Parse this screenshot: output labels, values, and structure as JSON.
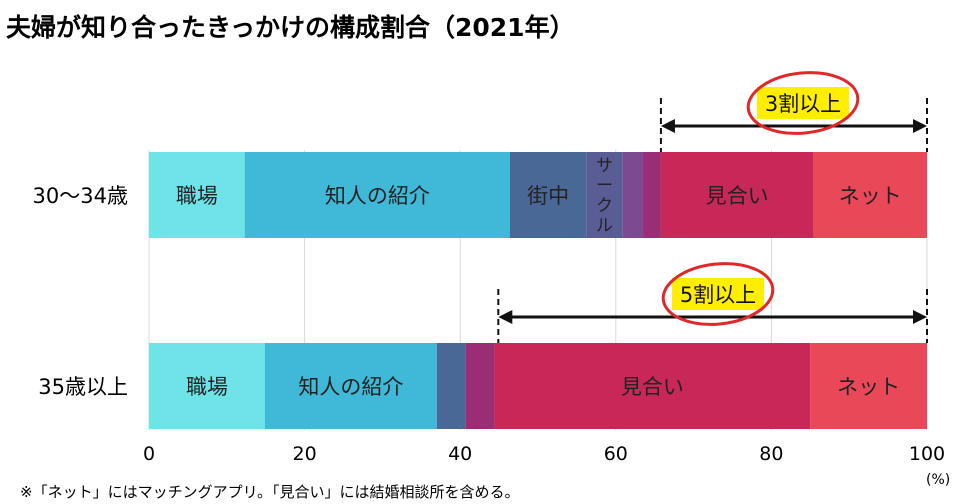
{
  "title": "夫婦が知り合ったきっかけの構成割合（2021年）",
  "footnote": "※「ネット」にはマッチングアプリ。「見合い」には結婚相談所を含める。",
  "chart_data": {
    "type": "bar",
    "orientation": "horizontal",
    "stacked": true,
    "xlim": [
      0,
      100
    ],
    "x_ticks": [
      0,
      20,
      40,
      60,
      80,
      100
    ],
    "x_unit": "(%)",
    "grid": true,
    "categories": [
      "30〜34歳",
      "35歳以上"
    ],
    "series": [
      {
        "name": "職場",
        "color": "#6ee3e8",
        "values": [
          12.3,
          14.9
        ]
      },
      {
        "name": "知人の紹介",
        "color": "#40b8d8",
        "values": [
          34.1,
          22.1
        ]
      },
      {
        "name": "街中",
        "color": "#4a6896",
        "values": [
          9.8,
          3.7
        ]
      },
      {
        "name": "サークル",
        "color": "#5a5c96",
        "values": [
          4.7,
          0
        ]
      },
      {
        "name": "",
        "color": "#7c4a90",
        "values": [
          2.6,
          0
        ]
      },
      {
        "name": "",
        "color": "#9a2e74",
        "values": [
          2.3,
          3.7
        ]
      },
      {
        "name": "見合い",
        "color": "#c82858",
        "values": [
          19.6,
          40.6
        ]
      },
      {
        "name": "ネット",
        "color": "#e84858",
        "values": [
          14.6,
          15.0
        ]
      }
    ],
    "segment_labels": [
      [
        "職場",
        "知人の紹介",
        "街中",
        "サークル",
        "",
        "",
        "見合い",
        "ネット"
      ],
      [
        "職場",
        "知人の紹介",
        "",
        "",
        "",
        "",
        "見合い",
        "ネット"
      ]
    ],
    "annotations": [
      {
        "text": "3割以上",
        "category": "30〜34歳",
        "from": 65.8,
        "to": 100
      },
      {
        "text": "5割以上",
        "category": "35歳以上",
        "from": 44.9,
        "to": 100
      }
    ]
  }
}
